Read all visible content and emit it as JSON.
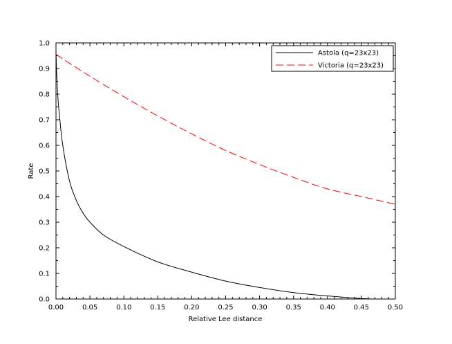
{
  "chart_data": {
    "type": "line",
    "title": "",
    "xlabel": "Relative Lee distance",
    "ylabel": "Rate",
    "xlim": [
      0.0,
      0.5
    ],
    "ylim": [
      0.0,
      1.0
    ],
    "grid": false,
    "legend_position": "top-right",
    "x_ticks": [
      "0.00",
      "0.05",
      "0.10",
      "0.15",
      "0.20",
      "0.25",
      "0.30",
      "0.35",
      "0.40",
      "0.45",
      "0.50"
    ],
    "y_ticks": [
      "0.0",
      "0.1",
      "0.2",
      "0.3",
      "0.4",
      "0.5",
      "0.6",
      "0.7",
      "0.8",
      "0.9",
      "1.0"
    ],
    "series": [
      {
        "name": "Astola (q=23x23)",
        "color": "#000000",
        "style": "solid",
        "x": [
          0.0,
          0.001,
          0.003,
          0.005,
          0.01,
          0.02,
          0.03,
          0.04,
          0.05,
          0.07,
          0.1,
          0.15,
          0.2,
          0.25,
          0.3,
          0.35,
          0.4,
          0.45,
          0.47,
          0.5
        ],
        "y": [
          0.97,
          0.88,
          0.78,
          0.72,
          0.6,
          0.46,
          0.385,
          0.335,
          0.3,
          0.25,
          0.205,
          0.145,
          0.105,
          0.07,
          0.045,
          0.025,
          0.012,
          0.002,
          0.0,
          0.0
        ]
      },
      {
        "name": "Victoria (q=23x23)",
        "color": "#ff0000",
        "style": "dashed",
        "x": [
          0.0,
          0.05,
          0.1,
          0.15,
          0.2,
          0.25,
          0.3,
          0.35,
          0.4,
          0.45,
          0.5
        ],
        "y": [
          0.955,
          0.87,
          0.79,
          0.715,
          0.645,
          0.58,
          0.525,
          0.475,
          0.43,
          0.4,
          0.37
        ]
      }
    ]
  }
}
